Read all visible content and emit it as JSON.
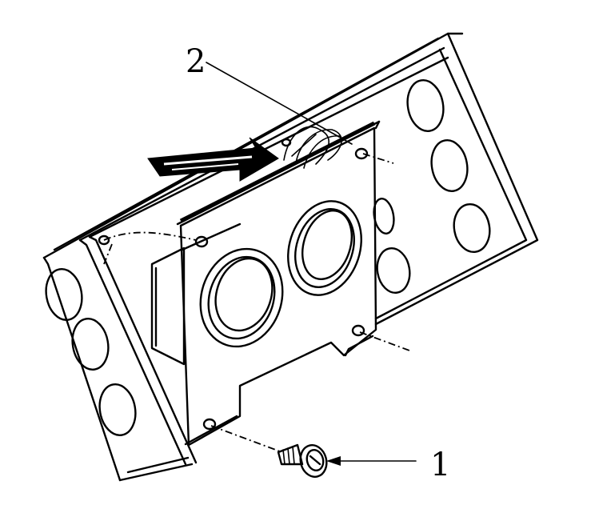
{
  "callouts": [
    {
      "id": "1",
      "label": "1"
    },
    {
      "id": "2",
      "label": "2"
    }
  ],
  "colors": {
    "ink": "#000000",
    "paper": "#ffffff"
  }
}
